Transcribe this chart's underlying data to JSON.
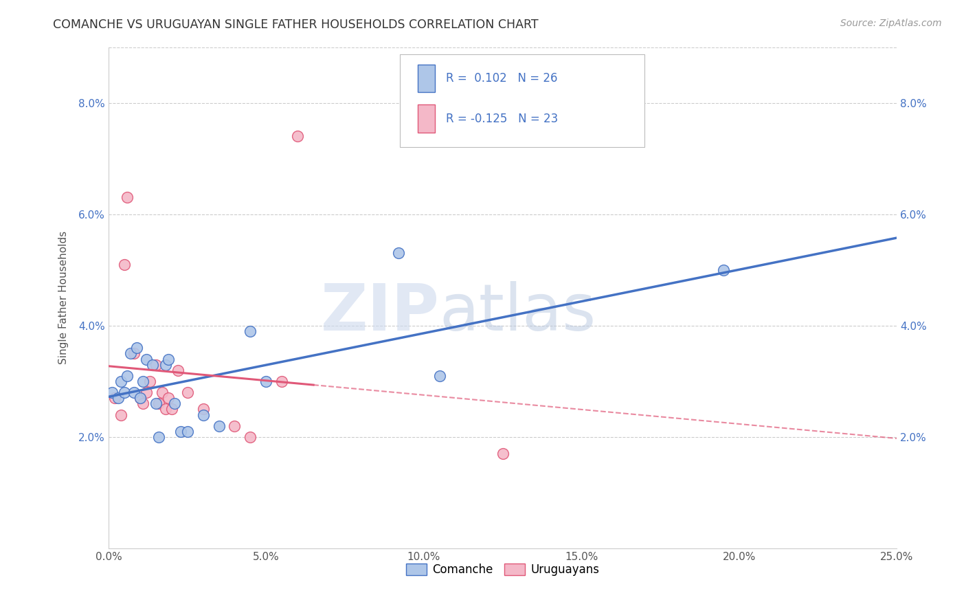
{
  "title": "COMANCHE VS URUGUAYAN SINGLE FATHER HOUSEHOLDS CORRELATION CHART",
  "source": "Source: ZipAtlas.com",
  "ylabel": "Single Father Households",
  "xlim": [
    0.0,
    0.25
  ],
  "ylim": [
    0.0,
    0.09
  ],
  "xticks": [
    0.0,
    0.05,
    0.1,
    0.15,
    0.2,
    0.25
  ],
  "yticks": [
    0.02,
    0.04,
    0.06,
    0.08
  ],
  "ytick_labels": [
    "2.0%",
    "4.0%",
    "6.0%",
    "8.0%"
  ],
  "xtick_labels": [
    "0.0%",
    "5.0%",
    "10.0%",
    "15.0%",
    "20.0%",
    "25.0%"
  ],
  "comanche_R": 0.102,
  "comanche_N": 26,
  "uruguayan_R": -0.125,
  "uruguayan_N": 23,
  "comanche_color": "#aec6e8",
  "uruguayan_color": "#f4b8c8",
  "comanche_line_color": "#4472c4",
  "uruguayan_line_color": "#e05878",
  "comanche_scatter_x": [
    0.001,
    0.003,
    0.004,
    0.005,
    0.006,
    0.007,
    0.008,
    0.009,
    0.01,
    0.011,
    0.012,
    0.014,
    0.015,
    0.016,
    0.018,
    0.019,
    0.021,
    0.023,
    0.025,
    0.03,
    0.035,
    0.045,
    0.05,
    0.092,
    0.105,
    0.195
  ],
  "comanche_scatter_y": [
    0.028,
    0.027,
    0.03,
    0.028,
    0.031,
    0.035,
    0.028,
    0.036,
    0.027,
    0.03,
    0.034,
    0.033,
    0.026,
    0.02,
    0.033,
    0.034,
    0.026,
    0.021,
    0.021,
    0.024,
    0.022,
    0.039,
    0.03,
    0.053,
    0.031,
    0.05
  ],
  "uruguayan_scatter_x": [
    0.002,
    0.004,
    0.005,
    0.006,
    0.008,
    0.01,
    0.011,
    0.012,
    0.013,
    0.015,
    0.016,
    0.017,
    0.018,
    0.019,
    0.02,
    0.022,
    0.025,
    0.03,
    0.04,
    0.045,
    0.055,
    0.06,
    0.125
  ],
  "uruguayan_scatter_y": [
    0.027,
    0.024,
    0.051,
    0.063,
    0.035,
    0.027,
    0.026,
    0.028,
    0.03,
    0.033,
    0.026,
    0.028,
    0.025,
    0.027,
    0.025,
    0.032,
    0.028,
    0.025,
    0.022,
    0.02,
    0.03,
    0.074,
    0.017
  ],
  "background_color": "#ffffff",
  "grid_color": "#cccccc",
  "watermark_zip": "ZIP",
  "watermark_atlas": "atlas",
  "legend_color": "#4472c4"
}
